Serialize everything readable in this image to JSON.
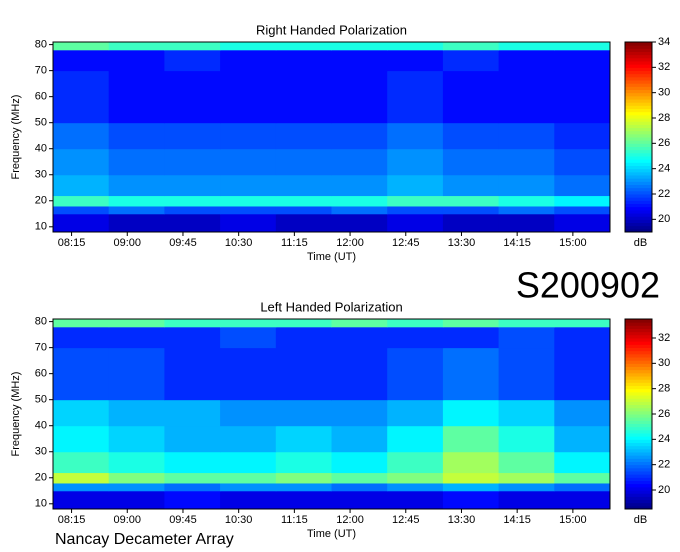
{
  "chart_data": [
    {
      "type": "spectrogram",
      "title": "Right Handed Polarization",
      "xlabel": "Time (UT)",
      "ylabel": "Frequency (MHz)",
      "zlabel": "dB",
      "colormap": "jet",
      "xlim": [
        8.0,
        15.5
      ],
      "xticks": [
        {
          "value": 8.25,
          "label": "08:15"
        },
        {
          "value": 9.0,
          "label": "09:00"
        },
        {
          "value": 9.75,
          "label": "09:45"
        },
        {
          "value": 10.5,
          "label": "10:30"
        },
        {
          "value": 11.25,
          "label": "11:15"
        },
        {
          "value": 12.0,
          "label": "12:00"
        },
        {
          "value": 12.75,
          "label": "12:45"
        },
        {
          "value": 13.5,
          "label": "13:30"
        },
        {
          "value": 14.25,
          "label": "14:15"
        },
        {
          "value": 15.0,
          "label": "15:00"
        }
      ],
      "ylim": [
        8,
        81
      ],
      "yticks": [
        10,
        20,
        30,
        40,
        50,
        60,
        70,
        80
      ],
      "zlim": [
        19,
        34
      ],
      "zticks": [
        20,
        22,
        24,
        26,
        28,
        30,
        32,
        34
      ],
      "xbins": [
        8.0,
        8.75,
        9.5,
        10.25,
        11.0,
        11.75,
        12.5,
        13.25,
        14.0,
        14.75,
        15.5
      ],
      "ybins": [
        8,
        15,
        18,
        22,
        30,
        40,
        50,
        70,
        78,
        81
      ],
      "values": [
        [
          20.5,
          20,
          20,
          20.5,
          20,
          20,
          20.5,
          20,
          20,
          20.5
        ],
        [
          22,
          22.5,
          22,
          22,
          22,
          22.5,
          22,
          22,
          22.5,
          22
        ],
        [
          25.5,
          25,
          25,
          25,
          25,
          25,
          25.5,
          25.5,
          25,
          24.5
        ],
        [
          23.5,
          23,
          23,
          23,
          23,
          23,
          23.5,
          23,
          23,
          22.5
        ],
        [
          23,
          22.5,
          22.5,
          22.5,
          22.5,
          22.5,
          23,
          22.5,
          22.5,
          22
        ],
        [
          22.5,
          22,
          22,
          22,
          22,
          22,
          22.5,
          22,
          22,
          21.5
        ],
        [
          21.5,
          21,
          21,
          21,
          21,
          21,
          21.5,
          21,
          21,
          21
        ],
        [
          21,
          21,
          21.5,
          21,
          21,
          21,
          21,
          21.5,
          21,
          21
        ],
        [
          26,
          25.5,
          25.5,
          25,
          25,
          25,
          25,
          25.5,
          25,
          25
        ]
      ]
    },
    {
      "type": "spectrogram",
      "title": "Left Handed Polarization",
      "xlabel": "Time (UT)",
      "ylabel": "Frequency (MHz)",
      "zlabel": "dB",
      "colormap": "jet",
      "xlim": [
        8.0,
        15.5
      ],
      "xticks": [
        {
          "value": 8.25,
          "label": "08:15"
        },
        {
          "value": 9.0,
          "label": "09:00"
        },
        {
          "value": 9.75,
          "label": "09:45"
        },
        {
          "value": 10.5,
          "label": "10:30"
        },
        {
          "value": 11.25,
          "label": "11:15"
        },
        {
          "value": 12.0,
          "label": "12:00"
        },
        {
          "value": 12.75,
          "label": "12:45"
        },
        {
          "value": 13.5,
          "label": "13:30"
        },
        {
          "value": 14.25,
          "label": "14:15"
        },
        {
          "value": 15.0,
          "label": "15:00"
        }
      ],
      "ylim": [
        8,
        81
      ],
      "yticks": [
        10,
        20,
        30,
        40,
        50,
        60,
        70,
        80
      ],
      "zlim": [
        18.5,
        33.5
      ],
      "zticks": [
        20,
        22,
        24,
        26,
        28,
        30,
        32
      ],
      "xbins": [
        8.0,
        8.75,
        9.5,
        10.25,
        11.0,
        11.75,
        12.5,
        13.25,
        14.0,
        14.75,
        15.5
      ],
      "ybins": [
        8,
        15,
        18,
        22,
        30,
        40,
        50,
        70,
        78,
        81
      ],
      "values": [
        [
          20,
          20,
          20.5,
          20,
          20,
          20,
          20,
          20.5,
          20,
          20
        ],
        [
          22.5,
          22.5,
          22,
          22.5,
          22.5,
          22,
          22.5,
          23,
          22.5,
          22
        ],
        [
          27,
          26,
          25.5,
          25.5,
          26,
          25.5,
          26,
          27,
          26.5,
          25.5
        ],
        [
          25,
          24.5,
          24,
          24,
          24.5,
          24,
          25,
          26.5,
          25.5,
          24
        ],
        [
          24,
          23.5,
          23,
          23,
          23.5,
          23,
          24,
          25.5,
          24.5,
          23
        ],
        [
          23.5,
          23,
          23,
          22.5,
          22.5,
          22.5,
          23,
          24,
          23.5,
          22.5
        ],
        [
          21.5,
          21.5,
          21,
          21,
          21,
          21,
          21.5,
          22,
          21.5,
          21
        ],
        [
          21,
          21,
          21,
          21.5,
          21,
          21,
          21,
          21,
          21.5,
          21
        ],
        [
          25.5,
          25.5,
          25,
          25,
          25,
          25.5,
          25,
          25.5,
          25,
          25
        ]
      ]
    }
  ],
  "annotations": [
    "S200902",
    "Nancay Decameter Array"
  ]
}
